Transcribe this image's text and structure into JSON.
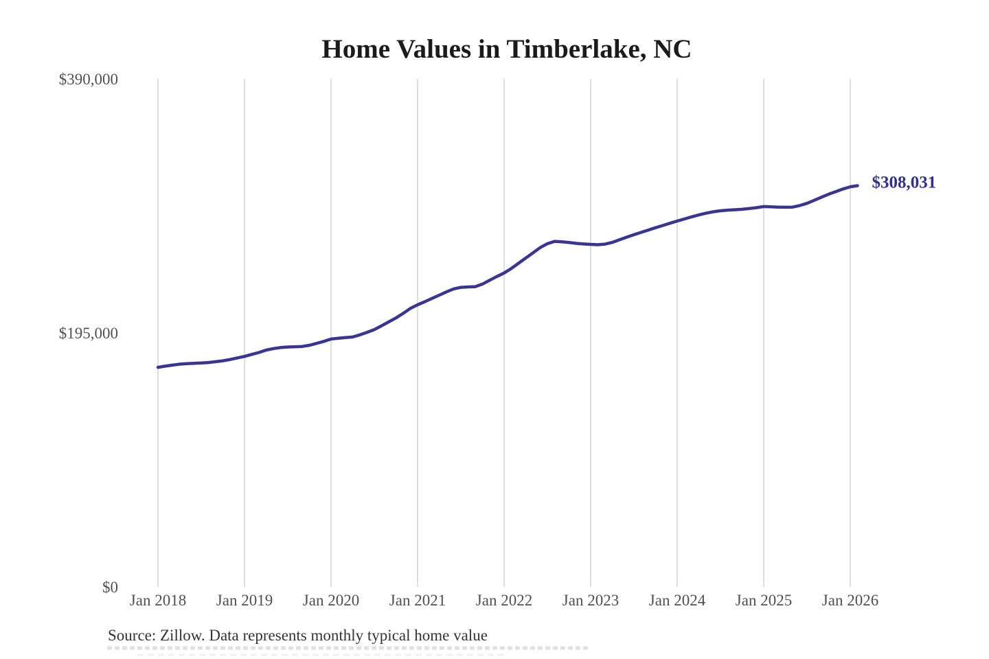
{
  "page": {
    "title": "Home Values in Timberlake, NC",
    "source_note": "Source: Zillow. Data represents monthly typical home value"
  },
  "chart_data": {
    "type": "line",
    "title": "Home Values in Timberlake, NC",
    "xlabel": "",
    "ylabel": "",
    "legend_position": "none",
    "grid": "vertical-only",
    "x_tick_labels": [
      "Jan 2018",
      "Jan 2019",
      "Jan 2020",
      "Jan 2021",
      "Jan 2022",
      "Jan 2023",
      "Jan 2024",
      "Jan 2025",
      "Jan 2026"
    ],
    "y_tick_labels": [
      "$0",
      "$195,000",
      "$390,000"
    ],
    "y_ticks": [
      0,
      195000,
      390000
    ],
    "ylim": [
      0,
      390000
    ],
    "x_start_month": "2018-01",
    "x_end_month": "2026-02",
    "end_label": "$308,031",
    "final_value": 308031,
    "line_color": "#3a3493",
    "end_label_color": "#322f90",
    "grid_color": "#cccccc",
    "series": [
      {
        "name": "Monthly typical home value",
        "monthly_values": [
          168600,
          169500,
          170300,
          171000,
          171400,
          171700,
          171900,
          172300,
          172900,
          173600,
          174600,
          175800,
          177000,
          178500,
          180000,
          181800,
          183000,
          183800,
          184200,
          184400,
          184600,
          185500,
          187000,
          188500,
          190300,
          190900,
          191400,
          191900,
          193500,
          195500,
          197600,
          200500,
          203500,
          206500,
          210000,
          213800,
          216600,
          219000,
          221500,
          224000,
          226500,
          228800,
          230000,
          230300,
          230500,
          232500,
          235500,
          238300,
          241000,
          244500,
          248500,
          252500,
          256500,
          260500,
          263500,
          265300,
          265000,
          264400,
          263800,
          263300,
          263000,
          262700,
          263200,
          264500,
          266500,
          268500,
          270400,
          272200,
          274000,
          275800,
          277500,
          279200,
          280900,
          282500,
          284100,
          285600,
          286900,
          288000,
          288800,
          289300,
          289600,
          289900,
          290500,
          291200,
          292000,
          291800,
          291600,
          291500,
          291600,
          292800,
          294500,
          296800,
          299200,
          301500,
          303500,
          305500,
          307200,
          308031
        ]
      }
    ]
  }
}
